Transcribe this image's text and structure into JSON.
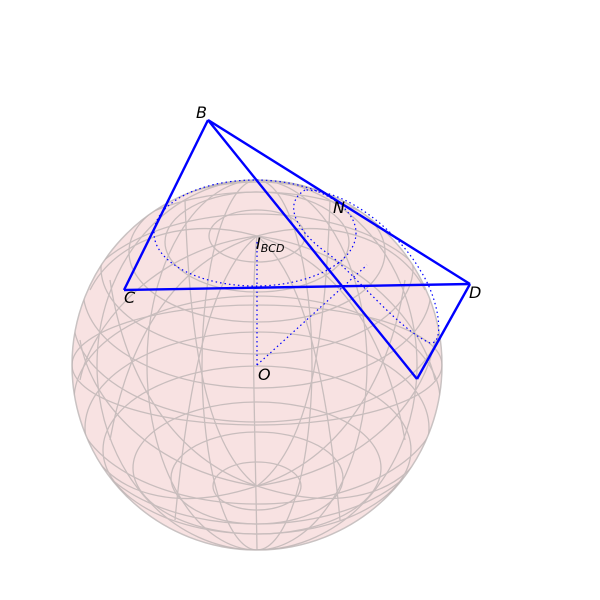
{
  "figure": {
    "labels": {
      "B": "B",
      "C": "C",
      "D": "D",
      "N": "N",
      "O": "O",
      "incenter_main": "I",
      "incenter_sub": "BCD"
    },
    "colors": {
      "sphere_fill": "#f8e2e2",
      "sphere_grid": "#b9b1b1",
      "sphere_outline": "#c9c2c2",
      "edge": "#0000ff",
      "construction": "#0000ff"
    }
  }
}
